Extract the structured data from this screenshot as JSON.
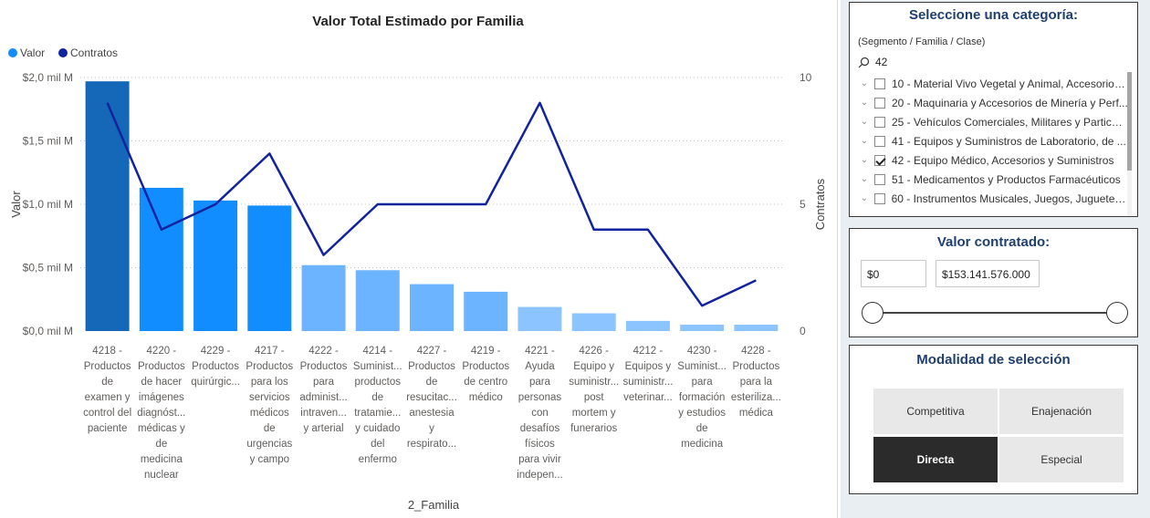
{
  "chart_data": {
    "type": "bar",
    "title": "Valor Total Estimado por Familia",
    "xlabel": "2_Familia",
    "ylabel": "Valor",
    "y2label": "Contratos",
    "legend": [
      {
        "name": "Valor",
        "color": "#118dff"
      },
      {
        "name": "Contratos",
        "color": "#12239e"
      }
    ],
    "legend_position": "top-left",
    "ylim": [
      0,
      2.0
    ],
    "y_ticks": [
      "$0,0 mil M",
      "$0,5 mil M",
      "$1,0 mil M",
      "$1,5 mil M",
      "$2,0 mil M"
    ],
    "y_tick_values": [
      0,
      0.5,
      1.0,
      1.5,
      2.0
    ],
    "y2lim": [
      0,
      10
    ],
    "y2_ticks": [
      "0",
      "5",
      "10"
    ],
    "y2_tick_values": [
      0,
      5,
      10
    ],
    "grid": true,
    "categories": [
      [
        "4218 -",
        "Productos",
        "de",
        "examen y",
        "control del",
        "paciente"
      ],
      [
        "4220 -",
        "Productos",
        "de hacer",
        "imágenes",
        "diagnóst...",
        "médicas y",
        "de",
        "medicina",
        "nuclear"
      ],
      [
        "4229 -",
        "Productos",
        "quirúrgic..."
      ],
      [
        "4217 -",
        "Productos",
        "para los",
        "servicios",
        "médicos",
        "de",
        "urgencias",
        "y campo"
      ],
      [
        "4222 -",
        "Productos",
        "para",
        "administ...",
        "intraven...",
        "y arterial"
      ],
      [
        "4214 -",
        "Suminist...",
        "productos",
        "de",
        "tratamie...",
        "y cuidado",
        "del",
        "enfermo"
      ],
      [
        "4227 -",
        "Productos",
        "de",
        "resucitac...",
        "anestesia",
        "y",
        "respirato..."
      ],
      [
        "4219 -",
        "Productos",
        "de centro",
        "médico"
      ],
      [
        "4221 -",
        "Ayuda",
        "para",
        "personas",
        "con",
        "desafíos",
        "físicos",
        "para vivir",
        "indepen..."
      ],
      [
        "4226 -",
        "Equipo y",
        "suministr...",
        "post",
        "mortem y",
        "funerarios"
      ],
      [
        "4212 -",
        "Equipos y",
        "suministr...",
        "veterinar..."
      ],
      [
        "4230 -",
        "Suminist...",
        "para",
        "formación",
        "y estudios",
        "de",
        "medicina"
      ],
      [
        "4228 -",
        "Productos",
        "para la",
        "esteriliza...",
        "médica"
      ]
    ],
    "series": [
      {
        "name": "Valor",
        "axis": "left",
        "values": [
          1.97,
          1.13,
          1.03,
          0.99,
          0.52,
          0.48,
          0.37,
          0.31,
          0.19,
          0.14,
          0.08,
          0.05,
          0.05
        ],
        "colors": [
          "#1567b8",
          "#118dff",
          "#118dff",
          "#118dff",
          "#6cb4ff",
          "#6cb4ff",
          "#6cb4ff",
          "#6cb4ff",
          "#8cc4ff",
          "#8cc4ff",
          "#8cc4ff",
          "#8cc4ff",
          "#8cc4ff"
        ]
      },
      {
        "name": "Contratos",
        "axis": "right",
        "type": "line",
        "color": "#12239e",
        "values": [
          9,
          4,
          5,
          7,
          3,
          5,
          5,
          5,
          9,
          4,
          4,
          1,
          2
        ]
      }
    ]
  },
  "category_filter": {
    "title": "Seleccione una categoría:",
    "subtitle": "(Segmento / Familia / Clase)",
    "search_value": "42",
    "items": [
      {
        "label": "10 - Material Vivo Vegetal y Animal, Accesorios...",
        "checked": false
      },
      {
        "label": "20 - Maquinaria y Accesorios de Minería y Perf...",
        "checked": false
      },
      {
        "label": "25 - Vehículos Comerciales, Militares y Particul...",
        "checked": false
      },
      {
        "label": "41 - Equipos y Suministros de Laboratorio, de ...",
        "checked": false
      },
      {
        "label": "42 - Equipo Médico, Accesorios y Suministros",
        "checked": true
      },
      {
        "label": "51 - Medicamentos y Productos Farmacéuticos",
        "checked": false
      },
      {
        "label": "60 - Instrumentos Musicales, Juegos, Juguetes, ...",
        "checked": false
      }
    ]
  },
  "value_filter": {
    "title": "Valor contratado:",
    "min": "$0",
    "max": "$153.141.576.000"
  },
  "modality": {
    "title": "Modalidad de selección",
    "options": [
      {
        "label": "Competitiva",
        "active": false
      },
      {
        "label": "Enajenación",
        "active": false
      },
      {
        "label": "Directa",
        "active": true
      },
      {
        "label": "Especial",
        "active": false
      }
    ]
  }
}
